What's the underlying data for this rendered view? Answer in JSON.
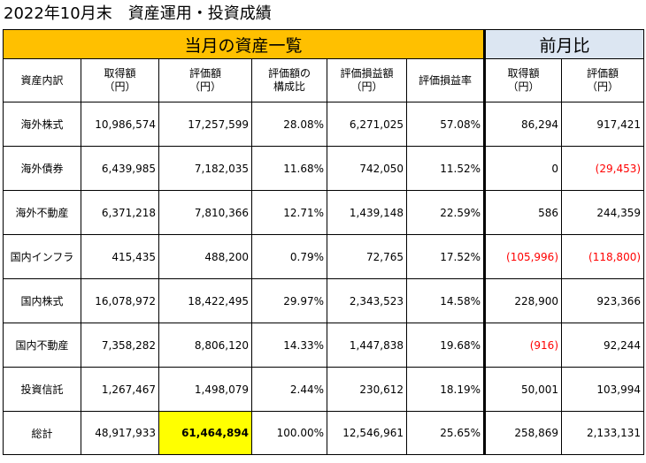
{
  "title": "2022年10月末　資産運用・投資成績",
  "bands": {
    "current": "当月の資産一覧",
    "previous": "前月比"
  },
  "headers": [
    "資産内訳",
    "取得額\n（円）",
    "評価額\n（円）",
    "評価額の\n構成比",
    "評価損益額\n（円）",
    "評価損益率",
    "取得額\n（円）",
    "評価額\n（円）"
  ],
  "rows": [
    [
      "海外株式",
      "10,986,574",
      "17,257,599",
      "28.08%",
      "6,271,025",
      "57.08%",
      "86,294",
      "917,421"
    ],
    [
      "海外債券",
      "6,439,985",
      "7,182,035",
      "11.68%",
      "742,050",
      "11.52%",
      "0",
      "(29,453)"
    ],
    [
      "海外不動産",
      "6,371,218",
      "7,810,366",
      "12.71%",
      "1,439,148",
      "22.59%",
      "586",
      "244,359"
    ],
    [
      "国内インフラ",
      "415,435",
      "488,200",
      "0.79%",
      "72,765",
      "17.52%",
      "(105,996)",
      "(118,800)"
    ],
    [
      "国内株式",
      "16,078,972",
      "18,422,495",
      "29.97%",
      "2,343,523",
      "14.58%",
      "228,900",
      "923,366"
    ],
    [
      "国内不動産",
      "7,358,282",
      "8,806,120",
      "14.33%",
      "1,447,838",
      "19.68%",
      "(916)",
      "92,244"
    ],
    [
      "投資信託",
      "1,267,467",
      "1,498,079",
      "2.44%",
      "230,612",
      "18.19%",
      "50,001",
      "103,994"
    ]
  ],
  "total": [
    "総計",
    "48,917,933",
    "61,464,894",
    "100.00%",
    "12,546,961",
    "25.65%",
    "258,869",
    "2,133,131"
  ],
  "colors": {
    "band_current": "#ffc000",
    "band_previous": "#dce6f2",
    "highlight": "#ffff00",
    "negative": "#ff0000"
  }
}
